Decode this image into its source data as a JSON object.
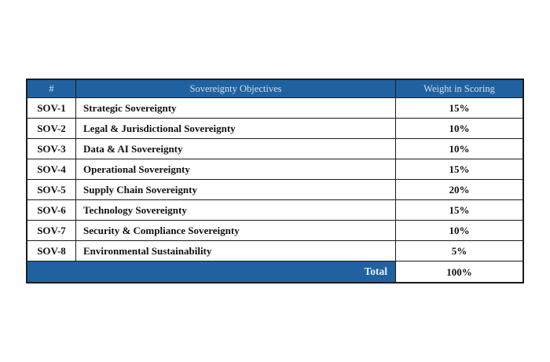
{
  "colors": {
    "header_background": "#2062A0",
    "header_text": "#D4DFEE",
    "border": "#1c1c1c",
    "body_text": "#111111",
    "page_background": "#ffffff"
  },
  "table": {
    "columns": {
      "number": "#",
      "objective": "Sovereignty Objectives",
      "weight": "Weight in Scoring"
    },
    "rows": [
      {
        "id": "SOV-1",
        "objective": "Strategic Sovereignty",
        "weight": "15%"
      },
      {
        "id": "SOV-2",
        "objective": "Legal & Jurisdictional Sovereignty",
        "weight": "10%"
      },
      {
        "id": "SOV-3",
        "objective": "Data & AI Sovereignty",
        "weight": "10%"
      },
      {
        "id": "SOV-4",
        "objective": "Operational Sovereignty",
        "weight": "15%"
      },
      {
        "id": "SOV-5",
        "objective": "Supply Chain Sovereignty",
        "weight": "20%"
      },
      {
        "id": "SOV-6",
        "objective": "Technology Sovereignty",
        "weight": "15%"
      },
      {
        "id": "SOV-7",
        "objective": "Security & Compliance Sovereignty",
        "weight": "10%"
      },
      {
        "id": "SOV-8",
        "objective": "Environmental Sustainability",
        "weight": "5%"
      }
    ],
    "footer": {
      "label": "Total",
      "value": "100%"
    }
  }
}
